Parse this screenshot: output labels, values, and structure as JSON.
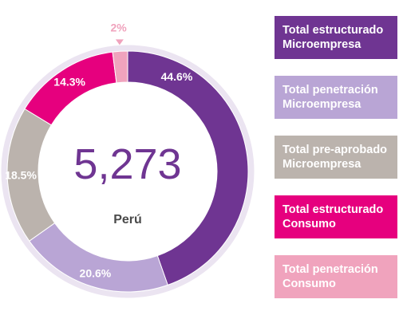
{
  "chart_data": {
    "type": "pie",
    "variant": "donut",
    "center_value": "5,273",
    "center_label": "Perú",
    "legend_placement": "right",
    "series": [
      {
        "name": "Total estructurado Microempresa",
        "label": "44.6%",
        "value": 44.6,
        "color": "#6f3592"
      },
      {
        "name": "Total penetración Microempresa",
        "label": "20.6%",
        "value": 20.6,
        "color": "#b9a5d5"
      },
      {
        "name": "Total pre-aprobado Microempresa",
        "label": "18.5%",
        "value": 18.5,
        "color": "#bbb3ad"
      },
      {
        "name": "Total estructurado Consumo",
        "label": "14.3%",
        "value": 14.3,
        "color": "#e6007e"
      },
      {
        "name": "Total penetración Consumo",
        "label": "2%",
        "value": 2.0,
        "color": "#f0a3bd"
      }
    ]
  },
  "legend": [
    {
      "line1": "Total estructurado",
      "line2": "Microempresa",
      "color": "#6f3592"
    },
    {
      "line1": "Total penetración",
      "line2": "Microempresa",
      "color": "#b9a5d5"
    },
    {
      "line1": "Total pre-aprobado",
      "line2": "Microempresa",
      "color": "#bbb3ad"
    },
    {
      "line1": "Total estructurado",
      "line2": "Consumo",
      "color": "#e6007e"
    },
    {
      "line1": "Total penetración",
      "line2": "Consumo",
      "color": "#f0a3bd"
    }
  ]
}
